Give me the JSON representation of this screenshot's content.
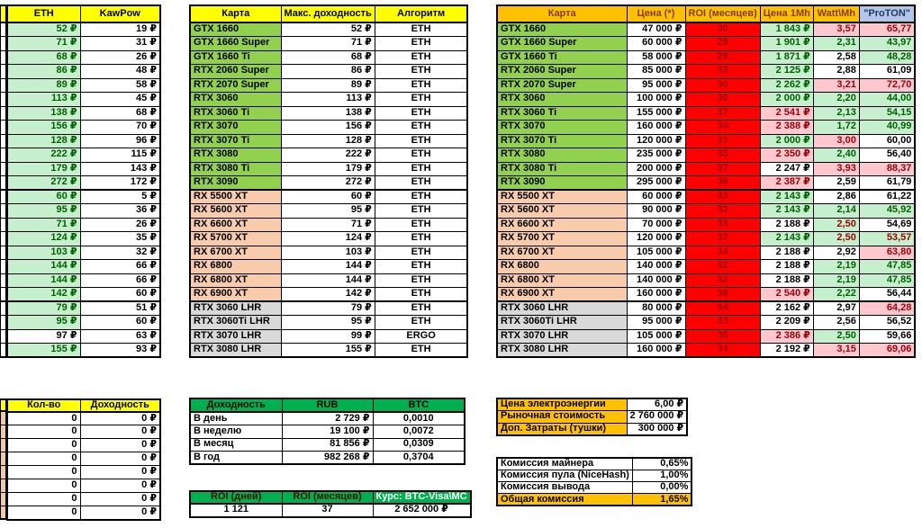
{
  "colors": {
    "header_yellow": "#FFFF00",
    "header_orange": "#FFC000",
    "header_blue": "#B4C6E7",
    "header_green": "#00B050",
    "nvidia_green": "#92D050",
    "amd_peach": "#F8CBAD",
    "lhr_gray": "#D9D9D9",
    "good_bg": "#C6EFCE",
    "good_text": "#006100",
    "bad_bg": "#FFC7CE",
    "bad_text": "#9C0006",
    "roi_bg": "#FF0000",
    "roi_text": "#9C0000"
  },
  "earnings_table": {
    "headers": [
      "ETH",
      "KawPow"
    ]
  },
  "max_income_table": {
    "headers": [
      "Карта",
      "Макс. доходность",
      "Алгоритм"
    ]
  },
  "price_table": {
    "headers": [
      "Карта",
      "Цена (*)",
      "ROI (месяцев)",
      "Цена 1Mh",
      "Watt\\Mh",
      "\"ProTON\""
    ]
  },
  "gpus": [
    {
      "name": "GTX 1660",
      "type": "nvidia",
      "eth": "52 ₽",
      "eth_style": "good",
      "kawpow": "19 ₽",
      "max_income": "52 ₽",
      "algorithm": "ETH",
      "price": "47 000 ₽",
      "roi_months": "30",
      "price_1mh": "1 843 ₽",
      "price_1mh_style": "good",
      "watt_mh": "3,57",
      "watt_mh_style": "bad",
      "proton": "65,77",
      "proton_style": "bad"
    },
    {
      "name": "GTX 1660 Super",
      "type": "nvidia",
      "eth": "71 ₽",
      "eth_style": "good",
      "kawpow": "31 ₽",
      "max_income": "71 ₽",
      "algorithm": "ETH",
      "price": "60 000 ₽",
      "roi_months": "28",
      "price_1mh": "1 901 ₽",
      "price_1mh_style": "good",
      "watt_mh": "2,31",
      "watt_mh_style": "good",
      "proton": "43,97",
      "proton_style": "good"
    },
    {
      "name": "GTX 1660 Ti",
      "type": "nvidia",
      "eth": "68 ₽",
      "eth_style": "good",
      "kawpow": "26 ₽",
      "max_income": "68 ₽",
      "algorithm": "ETH",
      "price": "58 000 ₽",
      "roi_months": "28",
      "price_1mh": "1 871 ₽",
      "price_1mh_style": "good",
      "watt_mh": "2,58",
      "watt_mh_style": "neutral",
      "proton": "48,28",
      "proton_style": "good"
    },
    {
      "name": "RTX 2060 Super",
      "type": "nvidia",
      "eth": "86 ₽",
      "eth_style": "good",
      "kawpow": "48 ₽",
      "max_income": "86 ₽",
      "algorithm": "ETH",
      "price": "85 000 ₽",
      "roi_months": "33",
      "price_1mh": "2 125 ₽",
      "price_1mh_style": "good",
      "watt_mh": "2,88",
      "watt_mh_style": "neutral",
      "proton": "61,09",
      "proton_style": "neutral"
    },
    {
      "name": "RTX 2070 Super",
      "type": "nvidia",
      "eth": "89 ₽",
      "eth_style": "good",
      "kawpow": "58 ₽",
      "max_income": "89 ₽",
      "algorithm": "ETH",
      "price": "95 000 ₽",
      "roi_months": "36",
      "price_1mh": "2 262 ₽",
      "price_1mh_style": "good",
      "watt_mh": "3,21",
      "watt_mh_style": "bad",
      "proton": "72,70",
      "proton_style": "bad"
    },
    {
      "name": "RTX 3060",
      "type": "nvidia",
      "eth": "113 ₽",
      "eth_style": "good",
      "kawpow": "45 ₽",
      "max_income": "113 ₽",
      "algorithm": "ETH",
      "price": "100 000 ₽",
      "roi_months": "30",
      "price_1mh": "2 000 ₽",
      "price_1mh_style": "good",
      "watt_mh": "2,20",
      "watt_mh_style": "good",
      "proton": "44,00",
      "proton_style": "good"
    },
    {
      "name": "RTX 3060 Ti",
      "type": "nvidia",
      "eth": "138 ₽",
      "eth_style": "good",
      "kawpow": "68 ₽",
      "max_income": "138 ₽",
      "algorithm": "ETH",
      "price": "155 000 ₽",
      "roi_months": "37",
      "price_1mh": "2 541 ₽",
      "price_1mh_style": "bad",
      "watt_mh": "2,13",
      "watt_mh_style": "good",
      "proton": "54,15",
      "proton_style": "good"
    },
    {
      "name": "RTX 3070",
      "type": "nvidia",
      "eth": "156 ₽",
      "eth_style": "good",
      "kawpow": "70 ₽",
      "max_income": "156 ₽",
      "algorithm": "ETH",
      "price": "160 000 ₽",
      "roi_months": "34",
      "price_1mh": "2 388 ₽",
      "price_1mh_style": "bad",
      "watt_mh": "1,72",
      "watt_mh_style": "good",
      "proton": "40,99",
      "proton_style": "good"
    },
    {
      "name": "RTX 3070 Ti",
      "type": "nvidia",
      "eth": "128 ₽",
      "eth_style": "good",
      "kawpow": "96 ₽",
      "max_income": "128 ₽",
      "algorithm": "ETH",
      "price": "120 000 ₽",
      "roi_months": "31",
      "price_1mh": "2 000 ₽",
      "price_1mh_style": "good",
      "watt_mh": "3,00",
      "watt_mh_style": "bad",
      "proton": "60,00",
      "proton_style": "neutral"
    },
    {
      "name": "RTX 3080",
      "type": "nvidia",
      "eth": "222 ₽",
      "eth_style": "good",
      "kawpow": "115 ₽",
      "max_income": "222 ₽",
      "algorithm": "ETH",
      "price": "235 000 ₽",
      "roi_months": "35",
      "price_1mh": "2 350 ₽",
      "price_1mh_style": "bad",
      "watt_mh": "2,40",
      "watt_mh_style": "good",
      "proton": "56,40",
      "proton_style": "neutral"
    },
    {
      "name": "RTX 3080 Ti",
      "type": "nvidia",
      "eth": "179 ₽",
      "eth_style": "good",
      "kawpow": "143 ₽",
      "max_income": "179 ₽",
      "algorithm": "ETH",
      "price": "200 000 ₽",
      "roi_months": "37",
      "price_1mh": "2 247 ₽",
      "price_1mh_style": "neutral",
      "watt_mh": "3,93",
      "watt_mh_style": "bad",
      "proton": "88,37",
      "proton_style": "bad"
    },
    {
      "name": "RTX 3090",
      "type": "nvidia",
      "eth": "272 ₽",
      "eth_style": "good",
      "kawpow": "172 ₽",
      "max_income": "272 ₽",
      "algorithm": "ETH",
      "price": "295 000 ₽",
      "roi_months": "36",
      "price_1mh": "2 387 ₽",
      "price_1mh_style": "bad",
      "watt_mh": "2,59",
      "watt_mh_style": "neutral",
      "proton": "61,79",
      "proton_style": "neutral"
    },
    {
      "name": "RX 5500 XT",
      "type": "amd",
      "eth": "60 ₽",
      "eth_style": "good",
      "kawpow": "5 ₽",
      "max_income": "60 ₽",
      "algorithm": "ETH",
      "price": "60 000 ₽",
      "roi_months": "33",
      "price_1mh": "2 143 ₽",
      "price_1mh_style": "good",
      "watt_mh": "2,86",
      "watt_mh_style": "neutral",
      "proton": "61,22",
      "proton_style": "neutral"
    },
    {
      "name": "RX 5600 XT",
      "type": "amd",
      "eth": "95 ₽",
      "eth_style": "good",
      "kawpow": "36 ₽",
      "max_income": "95 ₽",
      "algorithm": "ETH",
      "price": "90 000 ₽",
      "roi_months": "32",
      "price_1mh": "2 143 ₽",
      "price_1mh_style": "good",
      "watt_mh": "2,14",
      "watt_mh_style": "good",
      "proton": "45,92",
      "proton_style": "good"
    },
    {
      "name": "RX 6600 XT",
      "type": "amd",
      "eth": "71 ₽",
      "eth_style": "good",
      "kawpow": "26 ₽",
      "max_income": "71 ₽",
      "algorithm": "ETH",
      "price": "70 000 ₽",
      "roi_months": "33",
      "price_1mh": "2 188 ₽",
      "price_1mh_style": "neutral",
      "watt_mh": "2,50",
      "watt_mh_style": "mixed",
      "proton": "54,69",
      "proton_style": "neutral"
    },
    {
      "name": "RX 5700 XT",
      "type": "amd",
      "eth": "124 ₽",
      "eth_style": "good",
      "kawpow": "35 ₽",
      "max_income": "124 ₽",
      "algorithm": "ETH",
      "price": "120 000 ₽",
      "roi_months": "32",
      "price_1mh": "2 143 ₽",
      "price_1mh_style": "good",
      "watt_mh": "2,50",
      "watt_mh_style": "mixed",
      "proton": "53,57",
      "proton_style": "mixed"
    },
    {
      "name": "RX 6700 XT",
      "type": "amd",
      "eth": "103 ₽",
      "eth_style": "good",
      "kawpow": "32 ₽",
      "max_income": "103 ₽",
      "algorithm": "ETH",
      "price": "105 000 ₽",
      "roi_months": "34",
      "price_1mh": "2 188 ₽",
      "price_1mh_style": "neutral",
      "watt_mh": "2,92",
      "watt_mh_style": "neutral",
      "proton": "63,80",
      "proton_style": "bad"
    },
    {
      "name": "RX 6800",
      "type": "amd",
      "eth": "144 ₽",
      "eth_style": "good",
      "kawpow": "66 ₽",
      "max_income": "144 ₽",
      "algorithm": "ETH",
      "price": "140 000 ₽",
      "roi_months": "32",
      "price_1mh": "2 188 ₽",
      "price_1mh_style": "neutral",
      "watt_mh": "2,19",
      "watt_mh_style": "good",
      "proton": "47,85",
      "proton_style": "good"
    },
    {
      "name": "RX 6800 XT",
      "type": "amd",
      "eth": "144 ₽",
      "eth_style": "good",
      "kawpow": "66 ₽",
      "max_income": "144 ₽",
      "algorithm": "ETH",
      "price": "140 000 ₽",
      "roi_months": "32",
      "price_1mh": "2 188 ₽",
      "price_1mh_style": "neutral",
      "watt_mh": "2,19",
      "watt_mh_style": "good",
      "proton": "47,85",
      "proton_style": "good"
    },
    {
      "name": "RX 6900 XT",
      "type": "amd",
      "eth": "142 ₽",
      "eth_style": "good",
      "kawpow": "60 ₽",
      "max_income": "142 ₽",
      "algorithm": "ETH",
      "price": "160 000 ₽",
      "roi_months": "38",
      "price_1mh": "2 540 ₽",
      "price_1mh_style": "bad",
      "watt_mh": "2,22",
      "watt_mh_style": "good",
      "proton": "56,44",
      "proton_style": "neutral"
    },
    {
      "name": "RTX 3060 LHR",
      "type": "lhr",
      "eth": "79 ₽",
      "eth_style": "good",
      "kawpow": "51 ₽",
      "max_income": "79 ₽",
      "algorithm": "ETH",
      "price": "80 000 ₽",
      "roi_months": "34",
      "price_1mh": "2 162 ₽",
      "price_1mh_style": "neutral",
      "watt_mh": "2,97",
      "watt_mh_style": "neutral",
      "proton": "64,28",
      "proton_style": "bad"
    },
    {
      "name": "RTX 3060Ti LHR",
      "type": "lhr",
      "eth": "95 ₽",
      "eth_style": "good",
      "kawpow": "60 ₽",
      "max_income": "95 ₽",
      "algorithm": "ETH",
      "price": "95 000 ₽",
      "roi_months": "33",
      "price_1mh": "2 209 ₽",
      "price_1mh_style": "neutral",
      "watt_mh": "2,56",
      "watt_mh_style": "neutral",
      "proton": "56,52",
      "proton_style": "neutral"
    },
    {
      "name": "RTX 3070 LHR",
      "type": "lhr",
      "eth": "97 ₽",
      "eth_style": "neutral",
      "kawpow": "63 ₽",
      "max_income": "99 ₽",
      "algorithm": "ERGO",
      "price": "105 000 ₽",
      "roi_months": "35",
      "price_1mh": "2 386 ₽",
      "price_1mh_style": "bad",
      "watt_mh": "2,50",
      "watt_mh_style": "good",
      "proton": "59,66",
      "proton_style": "neutral"
    },
    {
      "name": "RTX 3080 LHR",
      "type": "lhr",
      "eth": "155 ₽",
      "eth_style": "good",
      "kawpow": "93 ₽",
      "max_income": "155 ₽",
      "algorithm": "ETH",
      "price": "160 000 ₽",
      "roi_months": "34",
      "price_1mh": "2 192 ₽",
      "price_1mh_style": "neutral",
      "watt_mh": "3,15",
      "watt_mh_style": "bad",
      "proton": "69,06",
      "proton_style": "bad"
    }
  ],
  "quantity_table": {
    "headers": [
      "Кол-во",
      "Доходность"
    ],
    "rows": [
      {
        "qty": "0",
        "income": "0 ₽"
      },
      {
        "qty": "0",
        "income": "0 ₽"
      },
      {
        "qty": "0",
        "income": "0 ₽"
      },
      {
        "qty": "0",
        "income": "0 ₽"
      },
      {
        "qty": "0",
        "income": "0 ₽"
      },
      {
        "qty": "0",
        "income": "0 ₽"
      },
      {
        "qty": "0",
        "income": "0 ₽"
      },
      {
        "qty": "0",
        "income": "0 ₽"
      }
    ]
  },
  "income_summary": {
    "headers": [
      "Доходность",
      "RUB",
      "BTC"
    ],
    "rows": [
      {
        "label": "В день",
        "rub": "2 729 ₽",
        "btc": "0,0010"
      },
      {
        "label": "В неделю",
        "rub": "19 100 ₽",
        "btc": "0,0072"
      },
      {
        "label": "В месяц",
        "rub": "81 856 ₽",
        "btc": "0,0309"
      },
      {
        "label": "В год",
        "rub": "982 268 ₽",
        "btc": "0,3704"
      }
    ]
  },
  "roi_summary": {
    "headers": [
      "ROI (дней)",
      "ROI (месяцев)",
      "Курс: BTC-Visa\\MC"
    ],
    "values": [
      "1 121",
      "37",
      "2 652 000 ₽"
    ]
  },
  "costs": {
    "rows": [
      {
        "label": "Цена электроэнергии",
        "value": "6,00 ₽"
      },
      {
        "label": "Рыночная стоимость",
        "value": "2 760 000 ₽"
      },
      {
        "label": "Доп. Затраты (тушки)",
        "value": "300 000 ₽"
      }
    ]
  },
  "commissions": {
    "rows": [
      {
        "label": "Комиссия майнера",
        "value": "0,65%"
      },
      {
        "label": "Комиссия пула (NiceHash)",
        "value": "1,00%"
      },
      {
        "label": "Комиссия вывода",
        "value": "0,00%"
      }
    ],
    "total": {
      "label": "Общая комиссия",
      "value": "1,65%"
    }
  }
}
